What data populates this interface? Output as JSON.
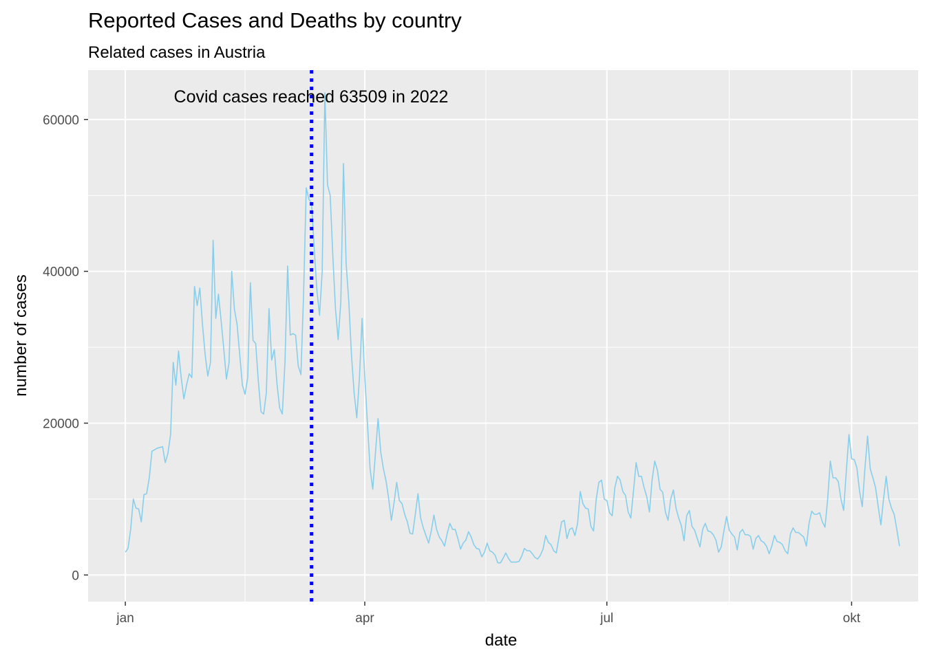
{
  "chart_data": {
    "type": "line",
    "title": "Reported Cases and Deaths by country",
    "subtitle": "Related cases in  Austria",
    "xlabel": "date",
    "ylabel": "number of cases",
    "x_tick_labels": [
      "jan",
      "apr",
      "jul",
      "okt"
    ],
    "y_tick_labels": [
      "0",
      "20000",
      "40000",
      "60000"
    ],
    "y_ticks": [
      0,
      20000,
      40000,
      60000
    ],
    "ylim": [
      -3500,
      66500
    ],
    "xlim_days": [
      -14,
      298
    ],
    "x_start": "2022-01-01",
    "annotation": "Covid cases reached 63509 in 2022",
    "peak_marker": {
      "date": "2022-03-12",
      "value": 63509,
      "style": "dotted",
      "color": "#0000ff"
    },
    "line_color": "#87ceeb",
    "panel_background": "#ebebeb",
    "grid": true,
    "series": [
      {
        "values": [
          3000,
          3500,
          6000,
          10000,
          8800,
          8700,
          7000,
          10600,
          10700,
          12800,
          16300,
          16500,
          16700,
          16800,
          16900,
          14800,
          16000,
          18500,
          28000,
          25000,
          29500,
          26000,
          23200,
          25000,
          26500,
          26000,
          38000,
          35500,
          37800,
          33000,
          29000,
          26200,
          28000,
          44100,
          33800,
          37000,
          33500,
          29800,
          25800,
          28000,
          40000,
          35000,
          33000,
          29000,
          25000,
          23800,
          26000,
          38500,
          30900,
          30500,
          25500,
          21500,
          21200,
          24000,
          35100,
          28300,
          29700,
          25200,
          22000,
          21200,
          28000,
          40700,
          31600,
          31800,
          31600,
          27500,
          26400,
          37000,
          51000,
          49500,
          49000,
          43000,
          37500,
          34200,
          40000,
          63509,
          51400,
          50000,
          42000,
          35000,
          31000,
          36000,
          54200,
          41000,
          36000,
          29000,
          24000,
          20700,
          26000,
          33800,
          26000,
          20000,
          14000,
          11300,
          16000,
          20600,
          16200,
          14000,
          12400,
          10000,
          7200,
          9500,
          12200,
          9800,
          9400,
          8000,
          7000,
          5500,
          5400,
          8000,
          10700,
          7500,
          6200,
          5200,
          4200,
          5800,
          7900,
          6000,
          5000,
          4500,
          3800,
          5500,
          6800,
          6000,
          6000,
          4800,
          3400,
          4200,
          4600,
          5700,
          5000,
          4000,
          3500,
          3400,
          2400,
          3000,
          4200,
          3200,
          3000,
          2600,
          1600,
          1600,
          2200,
          2900,
          2200,
          1700,
          1700,
          1700,
          1800,
          2500,
          3500,
          3200,
          3200,
          2800,
          2300,
          2100,
          2600,
          3400,
          5200,
          4300,
          4000,
          3200,
          2900,
          5000,
          7000,
          7200,
          4800,
          6000,
          6200,
          5200,
          6800,
          11000,
          9400,
          8800,
          8700,
          6400,
          5800,
          10000,
          12200,
          12500,
          10000,
          9800,
          8200,
          7800,
          11500,
          13000,
          12500,
          11000,
          10500,
          8300,
          7500,
          11000,
          14800,
          13000,
          13000,
          11500,
          10300,
          8300,
          12500,
          15000,
          13800,
          11300,
          10900,
          8300,
          7200,
          10000,
          11200,
          8800,
          7500,
          6500,
          4500,
          7800,
          8500,
          6400,
          5900,
          4800,
          3700,
          6000,
          6800,
          5800,
          5700,
          5300,
          4600,
          3000,
          3700,
          5800,
          7700,
          5900,
          5400,
          5000,
          3300,
          5600,
          6000,
          5300,
          5300,
          5100,
          3400,
          4800,
          5200,
          4500,
          4300,
          3800,
          2800,
          3800,
          5200,
          4400,
          4300,
          4000,
          3200,
          2800,
          5400,
          6200,
          5600,
          5600,
          5300,
          5000,
          3800,
          6800,
          8400,
          8000,
          8000,
          8200,
          7000,
          6300,
          10000,
          15000,
          12800,
          12800,
          12300,
          10000,
          8500,
          13600,
          18500,
          15300,
          15200,
          14100,
          11000,
          9000,
          14000,
          18300,
          14000,
          12800,
          11500,
          9000,
          6600,
          10000,
          13000,
          10000,
          8800,
          8000,
          6000,
          3800
        ]
      }
    ]
  }
}
